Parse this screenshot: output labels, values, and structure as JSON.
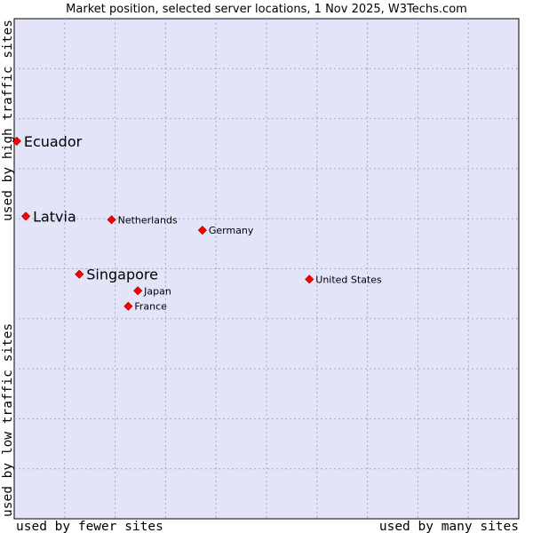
{
  "chart_data": {
    "type": "scatter",
    "title": "Market position, selected server locations, 1 Nov 2025, W3Techs.com",
    "xlabel_left": "used by fewer sites",
    "xlabel_right": "used by many sites",
    "ylabel_bottom": "used by low traffic sites",
    "ylabel_top": "used by high traffic sites",
    "xlim": [
      0,
      100
    ],
    "ylim": [
      0,
      100
    ],
    "grid": true,
    "marker_color": "#ff0000",
    "plot_background": "#e4e4f8",
    "points": [
      {
        "name": "Ecuador",
        "x": 0.5,
        "y": 75.5,
        "emphasis": true
      },
      {
        "name": "Latvia",
        "x": 2.3,
        "y": 60.5,
        "emphasis": true
      },
      {
        "name": "Singapore",
        "x": 12.9,
        "y": 48.9,
        "emphasis": true
      },
      {
        "name": "Netherlands",
        "x": 19.3,
        "y": 59.8,
        "emphasis": false
      },
      {
        "name": "Germany",
        "x": 37.3,
        "y": 57.7,
        "emphasis": false
      },
      {
        "name": "Japan",
        "x": 24.5,
        "y": 45.6,
        "emphasis": false
      },
      {
        "name": "France",
        "x": 22.6,
        "y": 42.5,
        "emphasis": false
      },
      {
        "name": "United States",
        "x": 58.5,
        "y": 47.9,
        "emphasis": false
      }
    ]
  }
}
